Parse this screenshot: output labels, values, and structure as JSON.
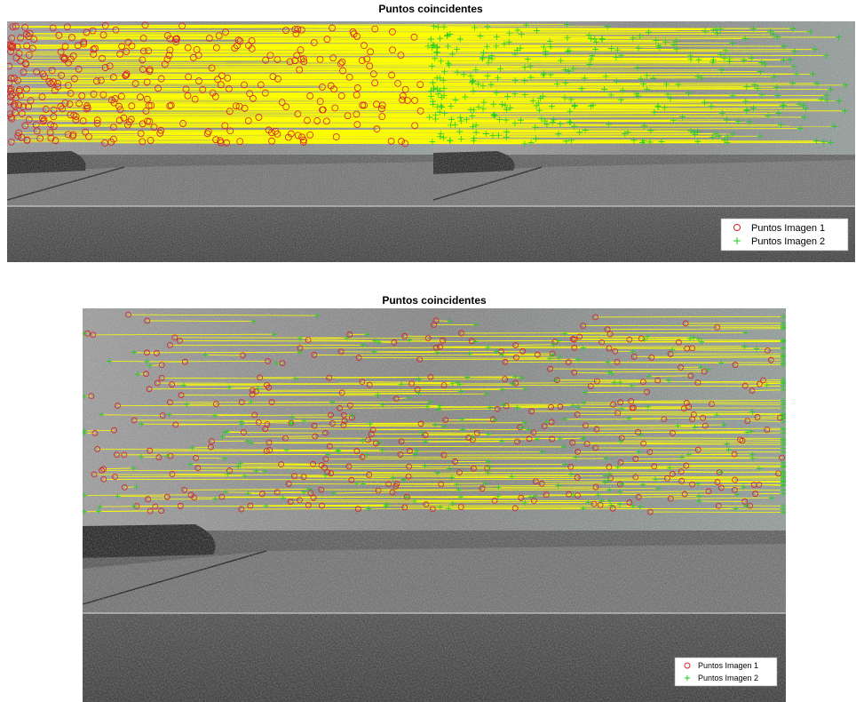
{
  "figures": [
    {
      "title": "Puntos coincidentes",
      "legend": [
        "Puntos Imagen 1",
        "Puntos Imagen 2"
      ]
    },
    {
      "title": "Puntos coincidentes",
      "legend": [
        "Puntos Imagen 1",
        "Puntos Imagen 2"
      ]
    }
  ]
}
